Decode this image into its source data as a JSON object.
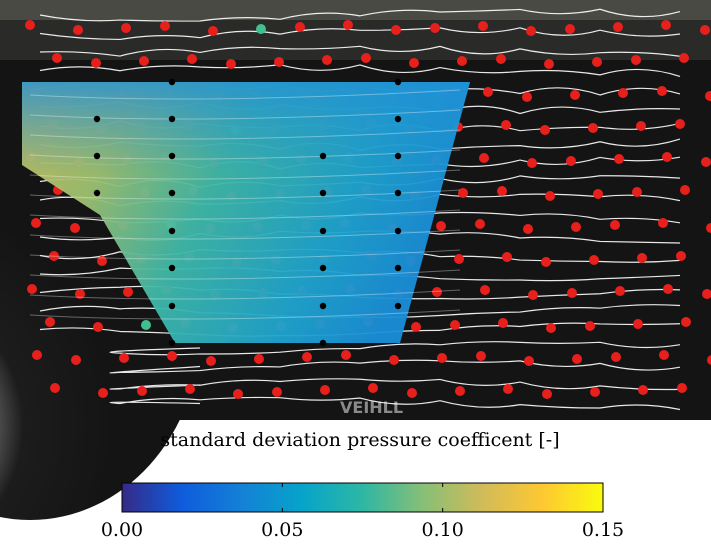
{
  "chart_data": {
    "type": "heatmap",
    "colorbar_label": "standard deviation pressure coefficent [-]",
    "colormap": "parula",
    "clim": [
      0,
      0.15
    ],
    "cticks": [
      {
        "value": 0,
        "label": "0.00"
      },
      {
        "value": 0.05,
        "label": "0.05"
      },
      {
        "value": 0.1,
        "label": "0.10"
      },
      {
        "value": 0.15,
        "label": "0.15"
      }
    ]
  }
}
